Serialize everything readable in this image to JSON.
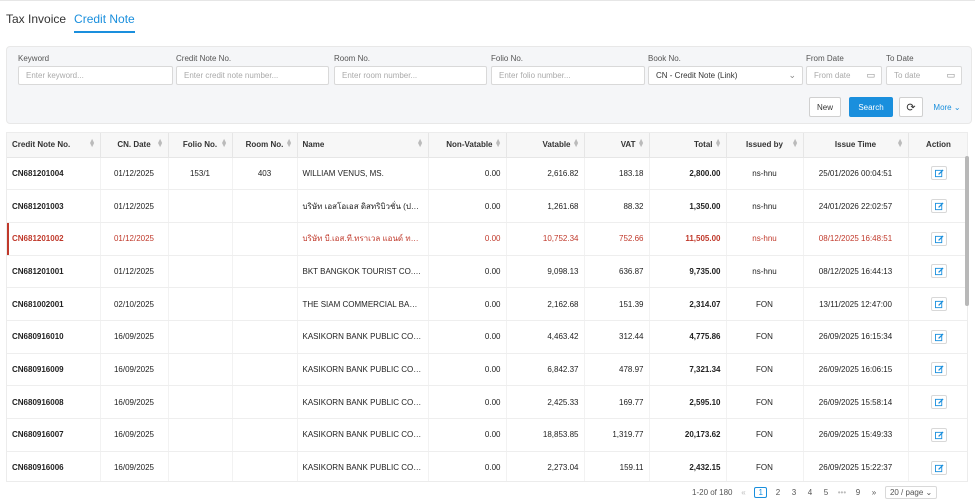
{
  "tabs": [
    {
      "label": "Tax Invoice"
    },
    {
      "label": "Credit Note"
    }
  ],
  "filters": {
    "keyword": {
      "label": "Keyword",
      "placeholder": "Enter keyword..."
    },
    "credit_note_no": {
      "label": "Credit Note No.",
      "placeholder": "Enter credit note number..."
    },
    "room_no": {
      "label": "Room No.",
      "placeholder": "Enter room number..."
    },
    "folio_no": {
      "label": "Folio No.",
      "placeholder": "Enter folio number..."
    },
    "book_no": {
      "label": "Book No.",
      "value": "CN - Credit Note (Link)"
    },
    "from_date": {
      "label": "From Date",
      "placeholder": "From date"
    },
    "to_date": {
      "label": "To Date",
      "placeholder": "To date"
    }
  },
  "actions": {
    "new": "New",
    "search": "Search",
    "more": "More"
  },
  "columns": [
    "Credit Note No.",
    "CN. Date",
    "Folio No.",
    "Room No.",
    "Name",
    "Non-Vatable",
    "Vatable",
    "VAT",
    "Total",
    "Issued by",
    "Issue Time",
    "Action"
  ],
  "rows": [
    [
      "CN681201004",
      "01/12/2025",
      "153/1",
      "403",
      "WILLIAM VENUS, MS.",
      "0.00",
      "2,616.82",
      "183.18",
      "2,800.00",
      "ns-hnu",
      "25/01/2026 00:04:51"
    ],
    [
      "CN681201003",
      "01/12/2025",
      "",
      "",
      "บริษัท เอสโอเอส ดิสทริบิวชั่น (ประเ...",
      "0.00",
      "1,261.68",
      "88.32",
      "1,350.00",
      "ns-hnu",
      "24/01/2026 22:02:57"
    ],
    [
      "CN681201002",
      "01/12/2025",
      "",
      "",
      "บริษัท บี.เอส.ที.ทราเวล แอนด์ ทรา...",
      "0.00",
      "10,752.34",
      "752.66",
      "11,505.00",
      "ns-hnu",
      "08/12/2025 16:48:51"
    ],
    [
      "CN681201001",
      "01/12/2025",
      "",
      "",
      "BKT BANGKOK TOURIST CO.,LT...",
      "0.00",
      "9,098.13",
      "636.87",
      "9,735.00",
      "ns-hnu",
      "08/12/2025 16:44:13"
    ],
    [
      "CN681002001",
      "02/10/2025",
      "",
      "",
      "THE SIAM COMMERCIAL BANK ...",
      "0.00",
      "2,162.68",
      "151.39",
      "2,314.07",
      "FON",
      "13/11/2025 12:47:00"
    ],
    [
      "CN680916010",
      "16/09/2025",
      "",
      "",
      "KASIKORN BANK PUBLIC COM...",
      "0.00",
      "4,463.42",
      "312.44",
      "4,775.86",
      "FON",
      "26/09/2025 16:15:34"
    ],
    [
      "CN680916009",
      "16/09/2025",
      "",
      "",
      "KASIKORN BANK PUBLIC COM...",
      "0.00",
      "6,842.37",
      "478.97",
      "7,321.34",
      "FON",
      "26/09/2025 16:06:15"
    ],
    [
      "CN680916008",
      "16/09/2025",
      "",
      "",
      "KASIKORN BANK PUBLIC COM...",
      "0.00",
      "2,425.33",
      "169.77",
      "2,595.10",
      "FON",
      "26/09/2025 15:58:14"
    ],
    [
      "CN680916007",
      "16/09/2025",
      "",
      "",
      "KASIKORN BANK PUBLIC COM...",
      "0.00",
      "18,853.85",
      "1,319.77",
      "20,173.62",
      "FON",
      "26/09/2025 15:49:33"
    ],
    [
      "CN680916006",
      "16/09/2025",
      "",
      "",
      "KASIKORN BANK PUBLIC COM...",
      "0.00",
      "2,273.04",
      "159.11",
      "2,432.15",
      "FON",
      "26/09/2025 15:22:37"
    ]
  ],
  "highlight_row": 2,
  "pagination": {
    "range": "1-20 of 180",
    "pages": [
      "1",
      "2",
      "3",
      "4",
      "5",
      "•••",
      "9"
    ],
    "current": "1",
    "page_size": "20 / page"
  },
  "colors": {
    "accent": "#1a8fdd",
    "highlight": "#c0392b"
  }
}
